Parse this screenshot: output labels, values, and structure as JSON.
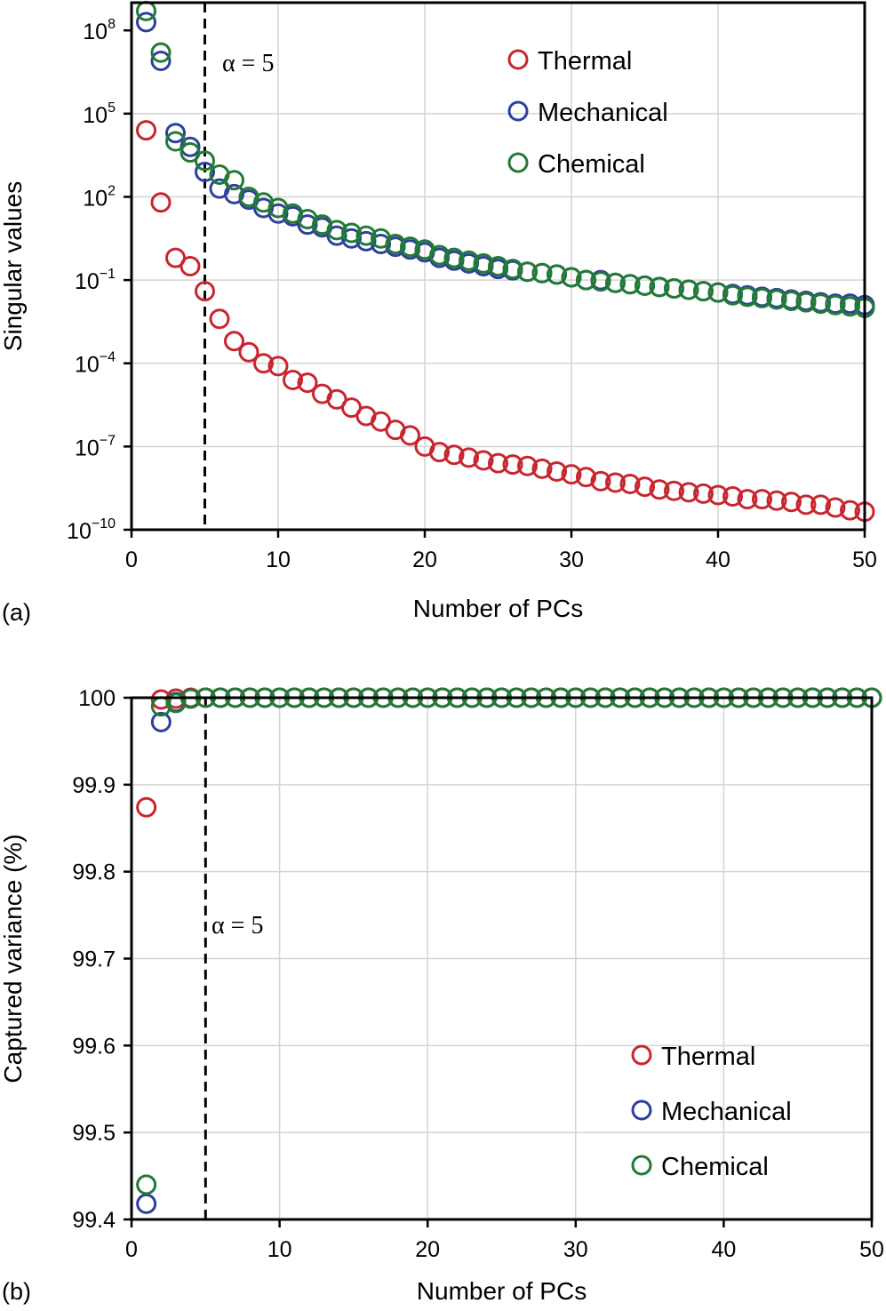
{
  "chart_data": [
    {
      "id": "a",
      "panel_label": "(a)",
      "type": "scatter",
      "scale_y": "log",
      "xlabel": "Number of PCs",
      "ylabel": "Singular values",
      "xlim": [
        0,
        50
      ],
      "ylim_exp": [
        -10,
        9
      ],
      "x_ticks": [
        "0",
        "10",
        "20",
        "30",
        "40",
        "50"
      ],
      "y_ticks": [
        {
          "base": "10",
          "exp": "−10",
          "e": -10
        },
        {
          "base": "10",
          "exp": "−7",
          "e": -7
        },
        {
          "base": "10",
          "exp": "−4",
          "e": -4
        },
        {
          "base": "10",
          "exp": "−1",
          "e": -1
        },
        {
          "base": "10",
          "exp": "2",
          "e": 2
        },
        {
          "base": "10",
          "exp": "5",
          "e": 5
        },
        {
          "base": "10",
          "exp": "8",
          "e": 8
        }
      ],
      "grid": true,
      "legend_position": "top-right",
      "annotation": {
        "text": "α = 5",
        "x": 5
      },
      "series": [
        {
          "name": "Thermal",
          "color": "#c8262e",
          "log10_values": [
            4.4,
            1.8,
            -0.2,
            -0.5,
            -1.4,
            -2.4,
            -3.2,
            -3.6,
            -4.0,
            -4.1,
            -4.6,
            -4.7,
            -5.1,
            -5.3,
            -5.6,
            -5.9,
            -6.1,
            -6.4,
            -6.6,
            -7.0,
            -7.2,
            -7.3,
            -7.4,
            -7.5,
            -7.6,
            -7.65,
            -7.7,
            -7.8,
            -7.9,
            -8.0,
            -8.1,
            -8.25,
            -8.3,
            -8.35,
            -8.45,
            -8.55,
            -8.6,
            -8.65,
            -8.7,
            -8.75,
            -8.8,
            -8.9,
            -8.9,
            -8.95,
            -9.0,
            -9.1,
            -9.1,
            -9.2,
            -9.3,
            -9.35
          ]
        },
        {
          "name": "Mechanical",
          "color": "#2e3f9e",
          "log10_values": [
            8.3,
            6.9,
            4.3,
            3.8,
            2.9,
            2.3,
            2.1,
            1.9,
            1.6,
            1.4,
            1.3,
            1.0,
            0.9,
            0.6,
            0.5,
            0.4,
            0.3,
            0.2,
            0.1,
            0.0,
            -0.2,
            -0.3,
            -0.4,
            -0.5,
            -0.6,
            -0.65,
            -0.7,
            -0.75,
            -0.8,
            -0.9,
            -1.0,
            -1.0,
            -1.1,
            -1.15,
            -1.2,
            -1.25,
            -1.3,
            -1.35,
            -1.4,
            -1.45,
            -1.5,
            -1.55,
            -1.6,
            -1.65,
            -1.7,
            -1.75,
            -1.8,
            -1.85,
            -1.85,
            -1.9
          ]
        },
        {
          "name": "Chemical",
          "color": "#217a35",
          "log10_values": [
            8.7,
            7.2,
            4.0,
            3.6,
            3.3,
            2.8,
            2.6,
            2.0,
            1.8,
            1.6,
            1.4,
            1.2,
            1.0,
            0.8,
            0.7,
            0.6,
            0.5,
            0.3,
            0.2,
            0.1,
            -0.1,
            -0.2,
            -0.3,
            -0.4,
            -0.5,
            -0.6,
            -0.7,
            -0.75,
            -0.8,
            -0.9,
            -1.0,
            -1.05,
            -1.1,
            -1.15,
            -1.2,
            -1.25,
            -1.3,
            -1.35,
            -1.4,
            -1.45,
            -1.55,
            -1.6,
            -1.65,
            -1.7,
            -1.75,
            -1.8,
            -1.85,
            -1.9,
            -1.95,
            -2.0
          ]
        }
      ]
    },
    {
      "id": "b",
      "panel_label": "(b)",
      "type": "scatter",
      "scale_y": "linear",
      "xlabel": "Number of PCs",
      "ylabel": "Captured variance (%)",
      "xlim": [
        0,
        50
      ],
      "ylim": [
        99.4,
        100
      ],
      "x_ticks": [
        "0",
        "10",
        "20",
        "30",
        "40",
        "50"
      ],
      "y_ticks": [
        "99.4",
        "99.5",
        "99.6",
        "99.7",
        "99.8",
        "99.9",
        "100"
      ],
      "grid": true,
      "legend_position": "bottom-right",
      "annotation": {
        "text": "α = 5",
        "x": 5
      },
      "series": [
        {
          "name": "Thermal",
          "color": "#c8262e",
          "values": [
            99.874,
            99.998,
            99.999,
            100,
            100,
            100,
            100,
            100,
            100,
            100,
            100,
            100,
            100,
            100,
            100,
            100,
            100,
            100,
            100,
            100,
            100,
            100,
            100,
            100,
            100,
            100,
            100,
            100,
            100,
            100,
            100,
            100,
            100,
            100,
            100,
            100,
            100,
            100,
            100,
            100,
            100,
            100,
            100,
            100,
            100,
            100,
            100,
            100,
            100,
            100
          ]
        },
        {
          "name": "Mechanical",
          "color": "#2e3f9e",
          "values": [
            99.418,
            99.972,
            99.995,
            99.999,
            100,
            100,
            100,
            100,
            100,
            100,
            100,
            100,
            100,
            100,
            100,
            100,
            100,
            100,
            100,
            100,
            100,
            100,
            100,
            100,
            100,
            100,
            100,
            100,
            100,
            100,
            100,
            100,
            100,
            100,
            100,
            100,
            100,
            100,
            100,
            100,
            100,
            100,
            100,
            100,
            100,
            100,
            100,
            100,
            100,
            100
          ]
        },
        {
          "name": "Chemical",
          "color": "#217a35",
          "values": [
            99.44,
            99.99,
            99.994,
            99.999,
            100,
            100,
            100,
            100,
            100,
            100,
            100,
            100,
            100,
            100,
            100,
            100,
            100,
            100,
            100,
            100,
            100,
            100,
            100,
            100,
            100,
            100,
            100,
            100,
            100,
            100,
            100,
            100,
            100,
            100,
            100,
            100,
            100,
            100,
            100,
            100,
            100,
            100,
            100,
            100,
            100,
            100,
            100,
            100,
            100,
            100
          ]
        }
      ]
    }
  ]
}
